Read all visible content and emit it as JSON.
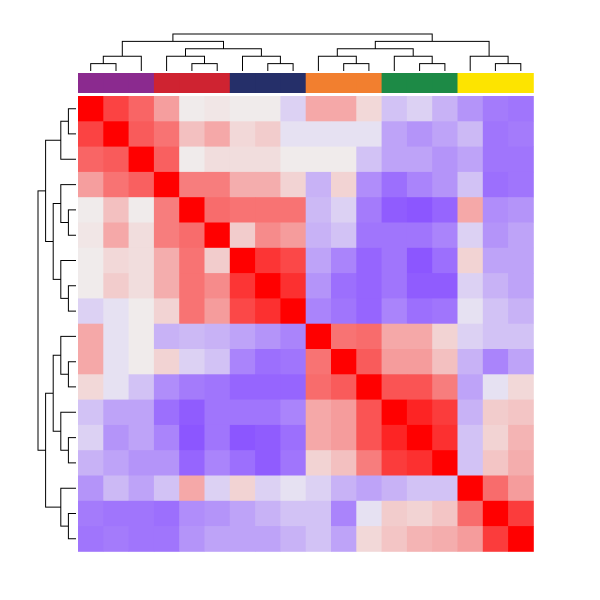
{
  "chart_data": {
    "type": "heatmap",
    "title": "",
    "xlabel": "",
    "ylabel": "",
    "size": 18,
    "group_colors": [
      "#8b2a8f",
      "#cf2331",
      "#252f69",
      "#f27f2f",
      "#1d8a46",
      "#fde400"
    ],
    "column_groups": [
      0,
      0,
      0,
      1,
      1,
      1,
      2,
      2,
      2,
      3,
      3,
      3,
      4,
      4,
      4,
      5,
      5,
      5
    ],
    "color_scale": {
      "min": -0.5,
      "max": 1.0,
      "low": "#8c56ff",
      "mid": "#f0f0f0",
      "high": "#ff0000"
    },
    "values": [
      [
        1.0,
        0.72,
        0.58,
        0.34,
        0.02,
        0.04,
        0.02,
        0.02,
        -0.1,
        0.3,
        0.3,
        0.1,
        -0.15,
        -0.1,
        -0.2,
        -0.3,
        -0.38,
        -0.4
      ],
      [
        0.72,
        1.0,
        0.62,
        0.52,
        0.2,
        0.3,
        0.1,
        0.15,
        -0.05,
        -0.05,
        -0.05,
        -0.05,
        -0.25,
        -0.3,
        -0.25,
        -0.18,
        -0.4,
        -0.38
      ],
      [
        0.58,
        0.62,
        1.0,
        0.6,
        0.02,
        0.08,
        0.08,
        0.08,
        0.02,
        0.02,
        0.02,
        -0.15,
        -0.25,
        -0.25,
        -0.3,
        -0.25,
        -0.4,
        -0.4
      ],
      [
        0.34,
        0.52,
        0.6,
        1.0,
        0.48,
        0.48,
        0.28,
        0.28,
        0.12,
        -0.2,
        0.12,
        -0.32,
        -0.42,
        -0.35,
        -0.3,
        -0.15,
        -0.42,
        -0.4
      ],
      [
        0.02,
        0.2,
        0.02,
        0.48,
        1.0,
        0.55,
        0.52,
        0.52,
        0.52,
        -0.18,
        -0.1,
        -0.38,
        -0.48,
        -0.55,
        -0.45,
        0.3,
        -0.32,
        -0.3
      ],
      [
        0.04,
        0.3,
        0.08,
        0.48,
        0.55,
        1.0,
        0.15,
        0.42,
        0.35,
        -0.2,
        -0.15,
        -0.4,
        -0.4,
        -0.4,
        -0.35,
        -0.1,
        -0.3,
        -0.25
      ],
      [
        0.02,
        0.1,
        0.08,
        0.28,
        0.52,
        0.15,
        1.0,
        0.78,
        0.7,
        -0.25,
        -0.35,
        -0.45,
        -0.4,
        -0.5,
        -0.42,
        0.12,
        -0.25,
        -0.25
      ],
      [
        0.02,
        0.15,
        0.08,
        0.28,
        0.52,
        0.42,
        0.78,
        1.0,
        0.8,
        -0.3,
        -0.42,
        -0.45,
        -0.4,
        -0.48,
        -0.48,
        -0.1,
        -0.2,
        -0.25
      ],
      [
        -0.1,
        -0.05,
        0.02,
        0.12,
        0.52,
        0.35,
        0.7,
        0.8,
        1.0,
        -0.35,
        -0.4,
        -0.45,
        -0.35,
        -0.42,
        -0.4,
        -0.05,
        -0.15,
        -0.2
      ],
      [
        0.3,
        -0.05,
        0.02,
        -0.2,
        -0.18,
        -0.2,
        -0.25,
        -0.3,
        -0.35,
        1.0,
        0.52,
        0.55,
        0.3,
        0.3,
        0.12,
        -0.1,
        -0.15,
        -0.15
      ],
      [
        0.3,
        -0.05,
        0.02,
        0.12,
        -0.1,
        -0.15,
        -0.35,
        -0.42,
        -0.4,
        0.52,
        1.0,
        0.62,
        0.35,
        0.35,
        0.2,
        -0.2,
        -0.35,
        -0.25
      ],
      [
        0.1,
        -0.05,
        -0.15,
        -0.32,
        -0.38,
        -0.4,
        -0.45,
        -0.45,
        -0.45,
        0.55,
        0.62,
        1.0,
        0.65,
        0.65,
        0.48,
        -0.25,
        -0.05,
        0.1
      ],
      [
        -0.15,
        -0.25,
        -0.25,
        -0.42,
        -0.48,
        -0.4,
        -0.4,
        -0.4,
        -0.35,
        0.3,
        0.35,
        0.65,
        1.0,
        0.85,
        0.75,
        -0.2,
        0.15,
        0.18
      ],
      [
        -0.1,
        -0.3,
        -0.25,
        -0.35,
        -0.55,
        -0.4,
        -0.5,
        -0.48,
        -0.42,
        0.3,
        0.35,
        0.65,
        0.85,
        1.0,
        0.8,
        -0.15,
        0.12,
        0.25
      ],
      [
        -0.2,
        -0.25,
        -0.3,
        -0.3,
        -0.45,
        -0.35,
        -0.42,
        -0.48,
        -0.4,
        0.12,
        0.2,
        0.48,
        0.75,
        0.8,
        1.0,
        -0.15,
        0.18,
        0.28
      ],
      [
        -0.3,
        -0.18,
        -0.25,
        -0.15,
        0.3,
        -0.1,
        0.12,
        -0.1,
        -0.05,
        -0.1,
        -0.2,
        -0.25,
        -0.2,
        -0.15,
        -0.15,
        1.0,
        0.55,
        0.35
      ],
      [
        -0.38,
        -0.4,
        -0.4,
        -0.42,
        -0.32,
        -0.3,
        -0.25,
        -0.2,
        -0.15,
        -0.15,
        -0.35,
        -0.05,
        0.15,
        0.12,
        0.18,
        0.55,
        1.0,
        0.75
      ],
      [
        -0.4,
        -0.38,
        -0.4,
        -0.4,
        -0.3,
        -0.25,
        -0.25,
        -0.25,
        -0.2,
        -0.15,
        -0.25,
        0.1,
        0.18,
        0.25,
        0.28,
        0.35,
        0.75,
        1.0
      ]
    ]
  }
}
